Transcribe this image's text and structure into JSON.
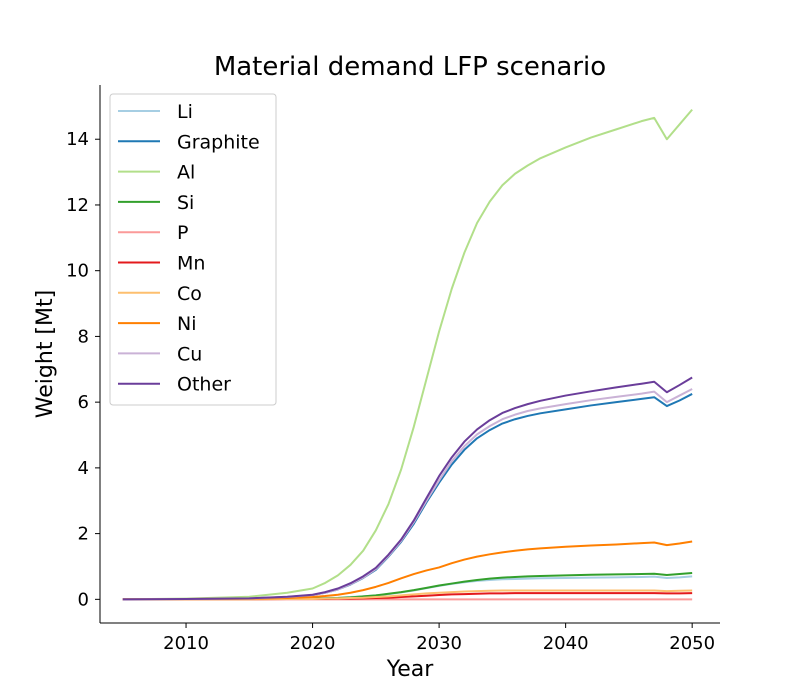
{
  "chart_data": {
    "type": "line",
    "title": "Material demand LFP scenario",
    "xlabel": "Year",
    "ylabel": "Weight [Mt]",
    "xlim": [
      2003.2,
      2052.2
    ],
    "ylim": [
      -0.72,
      15.65
    ],
    "xticks": [
      2010,
      2020,
      2030,
      2040,
      2050
    ],
    "yticks": [
      0,
      2,
      4,
      6,
      8,
      10,
      12,
      14
    ],
    "grid": false,
    "legend_position": "top-left",
    "x": [
      2005,
      2010,
      2015,
      2018,
      2020,
      2021,
      2022,
      2023,
      2024,
      2025,
      2026,
      2027,
      2028,
      2029,
      2030,
      2031,
      2032,
      2033,
      2034,
      2035,
      2036,
      2037,
      2038,
      2040,
      2042,
      2044,
      2046,
      2047,
      2048,
      2049,
      2050
    ],
    "series": [
      {
        "name": "Li",
        "color": "#a6cee3",
        "values": [
          0,
          0,
          0.01,
          0.02,
          0.03,
          0.04,
          0.05,
          0.07,
          0.09,
          0.12,
          0.16,
          0.21,
          0.27,
          0.34,
          0.41,
          0.47,
          0.52,
          0.56,
          0.59,
          0.61,
          0.62,
          0.63,
          0.64,
          0.65,
          0.66,
          0.67,
          0.68,
          0.69,
          0.65,
          0.67,
          0.7
        ]
      },
      {
        "name": "Graphite",
        "color": "#1f78b4",
        "values": [
          0,
          0.01,
          0.03,
          0.07,
          0.13,
          0.2,
          0.3,
          0.45,
          0.65,
          0.9,
          1.3,
          1.75,
          2.3,
          2.95,
          3.55,
          4.1,
          4.55,
          4.9,
          5.15,
          5.35,
          5.48,
          5.58,
          5.66,
          5.78,
          5.9,
          6.0,
          6.1,
          6.15,
          5.88,
          6.05,
          6.25
        ]
      },
      {
        "name": "Al",
        "color": "#b2df8a",
        "values": [
          0,
          0.02,
          0.08,
          0.2,
          0.33,
          0.5,
          0.73,
          1.05,
          1.48,
          2.1,
          2.9,
          3.95,
          5.25,
          6.7,
          8.15,
          9.45,
          10.55,
          11.45,
          12.1,
          12.6,
          12.95,
          13.2,
          13.42,
          13.75,
          14.05,
          14.3,
          14.55,
          14.65,
          14.0,
          14.45,
          14.9
        ]
      },
      {
        "name": "Si",
        "color": "#33a02c",
        "values": [
          0,
          0,
          0.01,
          0.01,
          0.02,
          0.03,
          0.04,
          0.06,
          0.09,
          0.12,
          0.17,
          0.22,
          0.28,
          0.35,
          0.42,
          0.48,
          0.54,
          0.59,
          0.63,
          0.66,
          0.68,
          0.7,
          0.71,
          0.73,
          0.75,
          0.76,
          0.77,
          0.78,
          0.74,
          0.77,
          0.8
        ]
      },
      {
        "name": "P",
        "color": "#fb9a99",
        "values": [
          0,
          0,
          0,
          0,
          0,
          0,
          0,
          0,
          0,
          0,
          0,
          0,
          0,
          0,
          0,
          0,
          0,
          0,
          0,
          0,
          0,
          0,
          0,
          0,
          0,
          0,
          0,
          0,
          0,
          0,
          0
        ]
      },
      {
        "name": "Mn",
        "color": "#e31a1c",
        "values": [
          0,
          0,
          0,
          0.01,
          0.01,
          0.01,
          0.02,
          0.02,
          0.03,
          0.04,
          0.05,
          0.07,
          0.09,
          0.11,
          0.13,
          0.15,
          0.16,
          0.17,
          0.18,
          0.18,
          0.19,
          0.19,
          0.19,
          0.19,
          0.19,
          0.19,
          0.19,
          0.19,
          0.18,
          0.18,
          0.19
        ]
      },
      {
        "name": "Co",
        "color": "#fdbf6f",
        "values": [
          0,
          0,
          0,
          0.01,
          0.01,
          0.02,
          0.03,
          0.04,
          0.05,
          0.07,
          0.09,
          0.12,
          0.15,
          0.18,
          0.2,
          0.22,
          0.24,
          0.25,
          0.26,
          0.27,
          0.27,
          0.27,
          0.27,
          0.27,
          0.27,
          0.27,
          0.27,
          0.27,
          0.25,
          0.26,
          0.27
        ]
      },
      {
        "name": "Ni",
        "color": "#ff7f00",
        "values": [
          0,
          0.01,
          0.02,
          0.04,
          0.07,
          0.1,
          0.14,
          0.2,
          0.28,
          0.38,
          0.5,
          0.64,
          0.77,
          0.88,
          0.97,
          1.1,
          1.21,
          1.3,
          1.37,
          1.43,
          1.48,
          1.52,
          1.55,
          1.6,
          1.64,
          1.67,
          1.71,
          1.73,
          1.65,
          1.7,
          1.76
        ]
      },
      {
        "name": "Cu",
        "color": "#cab2d6",
        "values": [
          0,
          0.01,
          0.03,
          0.07,
          0.13,
          0.2,
          0.3,
          0.46,
          0.66,
          0.92,
          1.32,
          1.78,
          2.35,
          3.0,
          3.62,
          4.2,
          4.66,
          5.02,
          5.27,
          5.48,
          5.62,
          5.73,
          5.81,
          5.94,
          6.06,
          6.16,
          6.26,
          6.32,
          6.0,
          6.2,
          6.4
        ]
      },
      {
        "name": "Other",
        "color": "#6a3d9a",
        "values": [
          0,
          0.01,
          0.03,
          0.08,
          0.14,
          0.22,
          0.33,
          0.49,
          0.7,
          0.96,
          1.36,
          1.82,
          2.4,
          3.08,
          3.75,
          4.32,
          4.8,
          5.17,
          5.45,
          5.67,
          5.82,
          5.94,
          6.04,
          6.2,
          6.33,
          6.45,
          6.56,
          6.62,
          6.3,
          6.52,
          6.75
        ]
      }
    ]
  }
}
